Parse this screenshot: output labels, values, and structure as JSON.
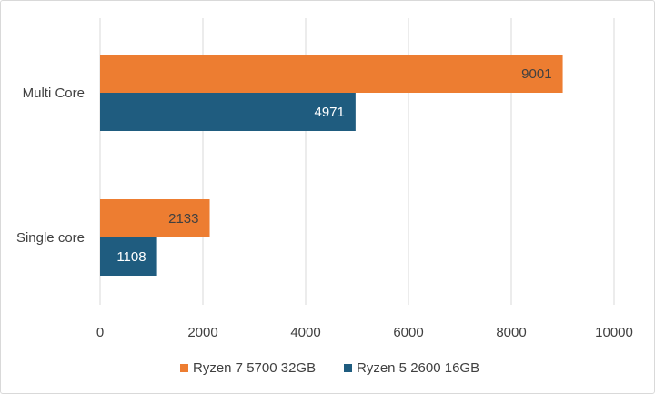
{
  "chart_data": {
    "type": "bar",
    "orientation": "horizontal",
    "categories": [
      "Multi Core",
      "Single core"
    ],
    "series": [
      {
        "name": "Ryzen 7 5700 32GB",
        "color": "#ED7D31",
        "label_color": "#404040",
        "values": [
          9001,
          2133
        ]
      },
      {
        "name": "Ryzen 5 2600 16GB",
        "color": "#1F5C7F",
        "label_color": "#ffffff",
        "values": [
          4971,
          1108
        ]
      }
    ],
    "xlim": [
      0,
      10000
    ],
    "xticks": [
      0,
      2000,
      4000,
      6000,
      8000,
      10000
    ],
    "grid": "vertical",
    "legend": "bottom",
    "title": "",
    "xlabel": "",
    "ylabel": ""
  }
}
